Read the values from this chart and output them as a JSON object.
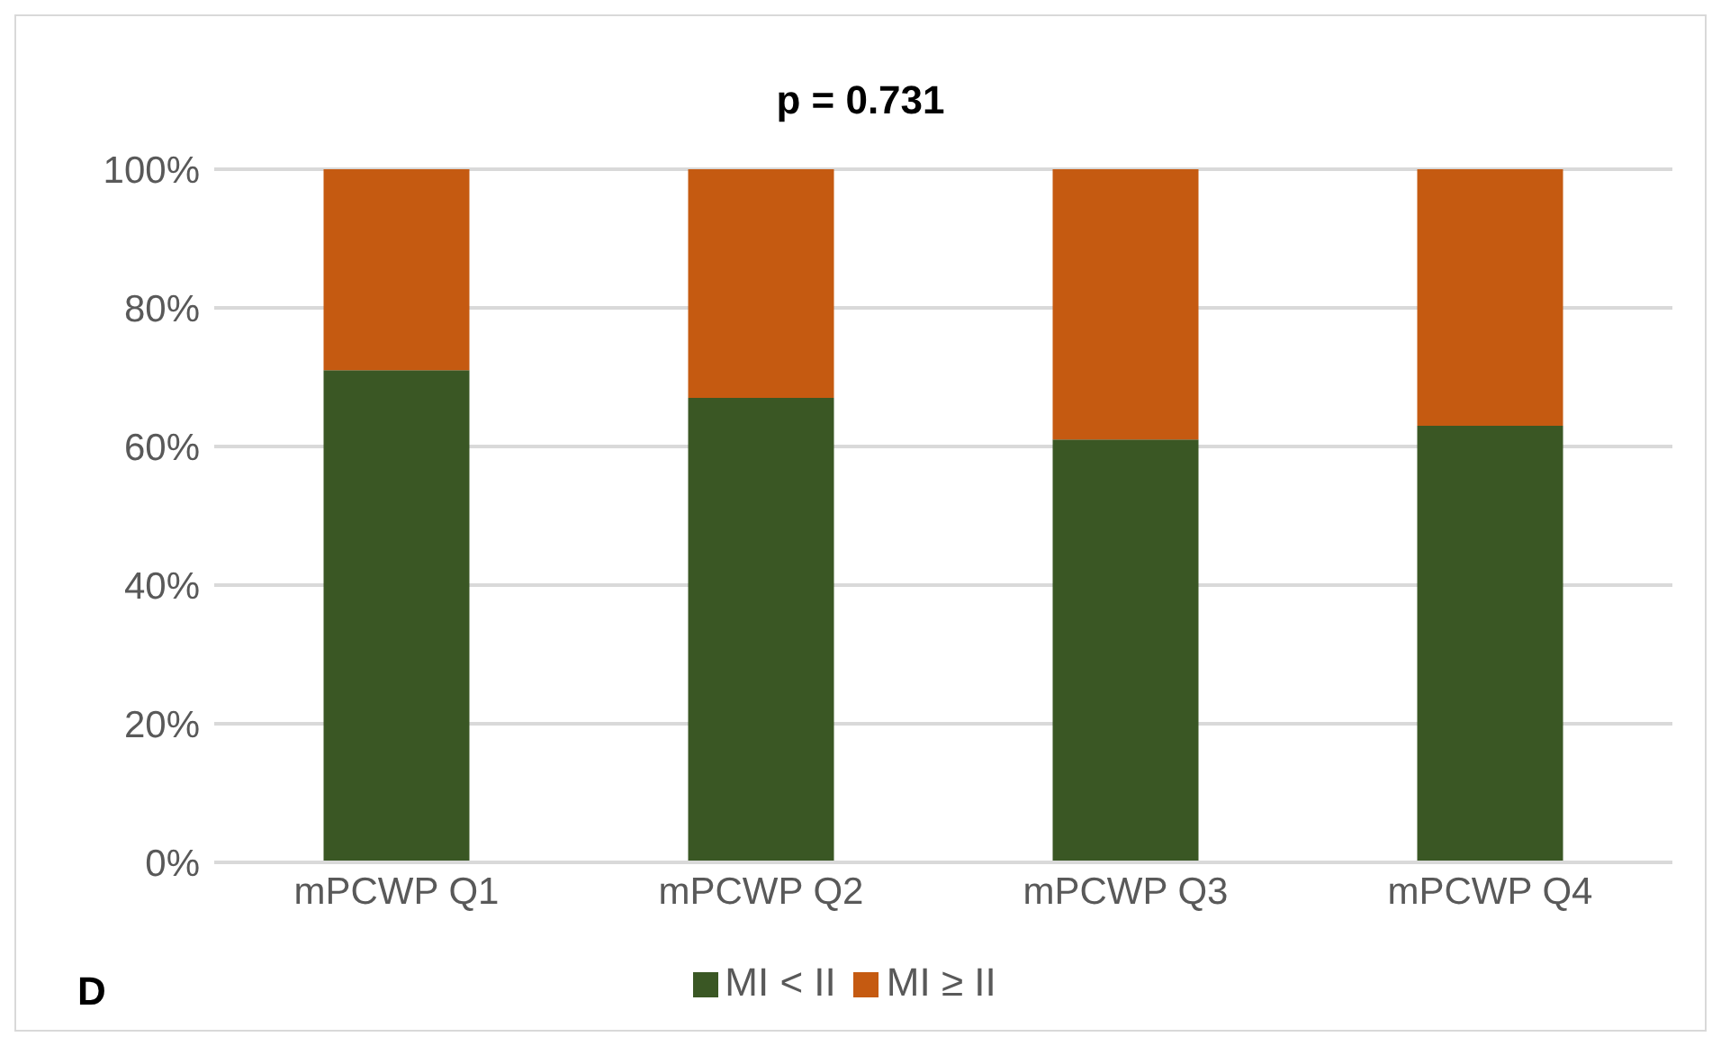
{
  "chart_data": {
    "type": "bar",
    "title": "p = 0.731",
    "stacked": true,
    "categories": [
      "mPCWP Q1",
      "mPCWP Q2",
      "mPCWP Q3",
      "mPCWP Q4"
    ],
    "series": [
      {
        "name": "MI < II",
        "color": "#3a5724",
        "values": [
          71,
          67,
          61,
          63
        ]
      },
      {
        "name": "MI ≥ II",
        "color": "#c55a11",
        "values": [
          29,
          33,
          39,
          37
        ]
      }
    ],
    "ylim": [
      0,
      100
    ],
    "yticks": [
      {
        "value": 0,
        "label": "0%"
      },
      {
        "value": 20,
        "label": "20%"
      },
      {
        "value": 40,
        "label": "40%"
      },
      {
        "value": 60,
        "label": "60%"
      },
      {
        "value": 80,
        "label": "80%"
      },
      {
        "value": 100,
        "label": "100%"
      }
    ],
    "grid": "y",
    "legend": "bottom",
    "annotations": [
      "D"
    ]
  }
}
